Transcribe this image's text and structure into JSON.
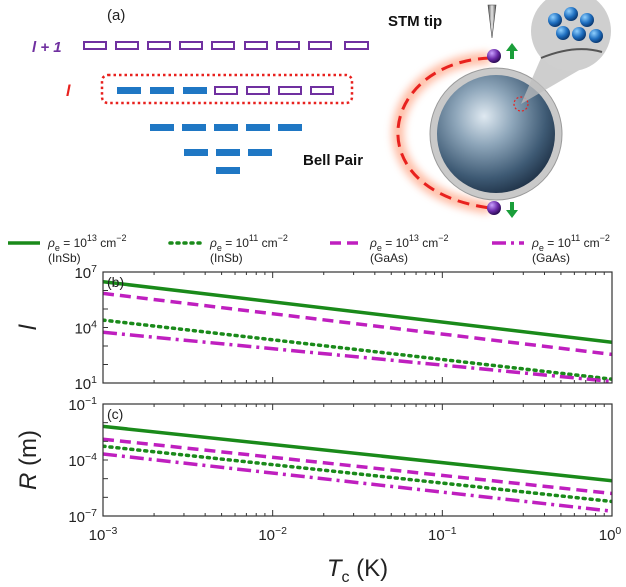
{
  "panel_a": {
    "label": "(a)",
    "level_top": "l + 1",
    "level_mid": "l",
    "stm_label": "STM tip",
    "bell_label": "Bell Pair",
    "colors": {
      "purple": "#7030a0",
      "blue": "#1f77c4",
      "red": "#e8211e",
      "green": "#1a9e3a"
    }
  },
  "legend": [
    {
      "rho": "10",
      "exp": "13",
      "unit": "cm",
      "uexp": "−2",
      "material": "(InSb)",
      "style": "solid",
      "color": "#1a8a1a"
    },
    {
      "rho": "10",
      "exp": "11",
      "unit": "cm",
      "uexp": "−2",
      "material": "(InSb)",
      "style": "dotted",
      "color": "#1a8a1a"
    },
    {
      "rho": "10",
      "exp": "13",
      "unit": "cm",
      "uexp": "−2",
      "material": "(GaAs)",
      "style": "dashed",
      "color": "#bf1fbf"
    },
    {
      "rho": "10",
      "exp": "11",
      "unit": "cm",
      "uexp": "−2",
      "material": "(GaAs)",
      "style": "dashdot",
      "color": "#bf1fbf"
    }
  ],
  "chart_data": [
    {
      "type": "line",
      "panel": "(b)",
      "ylabel": "l",
      "xscale": "log",
      "yscale": "log",
      "xlim": [
        0.001,
        1
      ],
      "ylim": [
        10,
        10000000
      ],
      "yticks": [
        {
          "base": "10",
          "exp": "7",
          "v": 10000000
        },
        {
          "base": "10",
          "exp": "4",
          "v": 10000
        },
        {
          "base": "10",
          "exp": "1",
          "v": 10
        }
      ],
      "series": [
        {
          "x": [
            0.001,
            1
          ],
          "y": [
            3000000,
            1600
          ],
          "style": "solid",
          "color": "#1a8a1a"
        },
        {
          "x": [
            0.001,
            1
          ],
          "y": [
            700000,
            350
          ],
          "style": "dashed",
          "color": "#bf1fbf"
        },
        {
          "x": [
            0.001,
            1
          ],
          "y": [
            25000,
            16
          ],
          "style": "dotted",
          "color": "#1a8a1a"
        },
        {
          "x": [
            0.001,
            1
          ],
          "y": [
            5500,
            12
          ],
          "style": "dashdot",
          "color": "#bf1fbf"
        }
      ]
    },
    {
      "type": "line",
      "panel": "(c)",
      "ylabel": "R (m)",
      "xlabel": "T",
      "xlabel_sub": "c",
      "xlabel_unit": " (K)",
      "xscale": "log",
      "yscale": "log",
      "xlim": [
        0.001,
        1
      ],
      "ylim": [
        1e-07,
        0.1
      ],
      "yticks": [
        {
          "base": "10",
          "exp": "−1",
          "v": 0.1
        },
        {
          "base": "10",
          "exp": "−4",
          "v": 0.0001
        },
        {
          "base": "10",
          "exp": "−7",
          "v": 1e-07
        }
      ],
      "xticks": [
        {
          "base": "10",
          "exp": "−3",
          "v": 0.001
        },
        {
          "base": "10",
          "exp": "−2",
          "v": 0.01
        },
        {
          "base": "10",
          "exp": "−1",
          "v": 0.1
        },
        {
          "base": "10",
          "exp": "0",
          "v": 1
        }
      ],
      "series": [
        {
          "x": [
            0.001,
            1
          ],
          "y": [
            0.0063,
            7.8e-06
          ],
          "style": "solid",
          "color": "#1a8a1a"
        },
        {
          "x": [
            0.001,
            1
          ],
          "y": [
            0.0013,
            1.6e-06
          ],
          "style": "dashed",
          "color": "#bf1fbf"
        },
        {
          "x": [
            0.001,
            1
          ],
          "y": [
            0.00055,
            6e-07
          ],
          "style": "dotted",
          "color": "#1a8a1a"
        },
        {
          "x": [
            0.001,
            1
          ],
          "y": [
            0.00021,
            1.8e-07
          ],
          "style": "dashdot",
          "color": "#bf1fbf"
        }
      ]
    }
  ]
}
